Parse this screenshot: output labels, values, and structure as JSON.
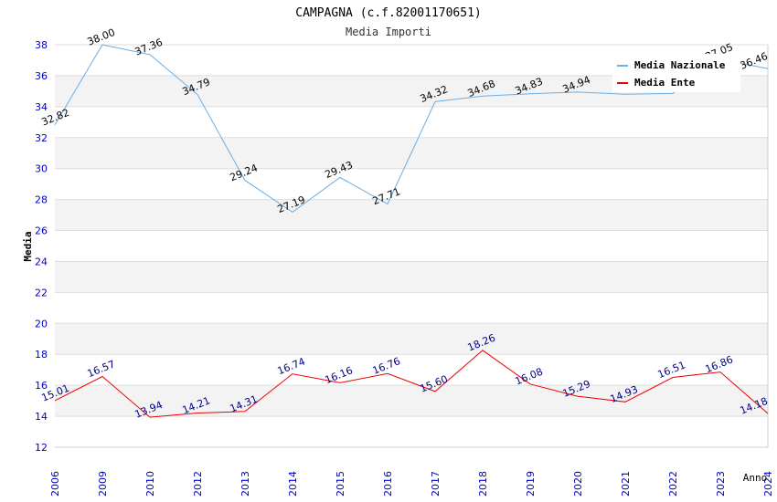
{
  "chart_data": {
    "type": "line",
    "title": "CAMPAGNA (c.f.82001170651)",
    "subtitle": "Media Importi",
    "xlabel": "Anno",
    "ylabel": "Media",
    "ylim": [
      12,
      38
    ],
    "yticks": [
      "12",
      "14",
      "16",
      "18",
      "20",
      "22",
      "24",
      "26",
      "28",
      "30",
      "32",
      "34",
      "36",
      "38"
    ],
    "categories": [
      "2006",
      "2009",
      "2010",
      "2012",
      "2013",
      "2014",
      "2015",
      "2016",
      "2017",
      "2018",
      "2019",
      "2020",
      "2021",
      "2022",
      "2023",
      "2024"
    ],
    "grid": true,
    "legend_position": "top-right",
    "series": [
      {
        "name": "Media Nazionale",
        "color": "#6aaee6",
        "label_color": "#000000",
        "values": [
          32.82,
          38.0,
          37.36,
          34.79,
          29.24,
          27.19,
          29.43,
          27.71,
          34.32,
          34.68,
          34.83,
          34.94,
          null,
          null,
          37.05,
          36.46
        ],
        "line_values": [
          32.82,
          38.0,
          37.36,
          34.79,
          29.24,
          27.19,
          29.43,
          27.71,
          34.32,
          34.68,
          34.83,
          34.94,
          34.8,
          34.85,
          37.05,
          36.46
        ],
        "labels": [
          "32.82",
          "38.00",
          "37.36",
          "34.79",
          "29.24",
          "27.19",
          "29.43",
          "27.71",
          "34.32",
          "34.68",
          "34.83",
          "34.94",
          "",
          "",
          "37.05",
          "36.46"
        ]
      },
      {
        "name": "Media Ente",
        "color": "#ee0000",
        "label_color": "#000080",
        "values": [
          15.01,
          16.57,
          13.94,
          14.21,
          14.31,
          16.74,
          16.16,
          16.76,
          15.6,
          18.26,
          16.08,
          15.29,
          14.93,
          16.51,
          16.86,
          14.18
        ],
        "line_values": [
          15.01,
          16.57,
          13.94,
          14.21,
          14.31,
          16.74,
          16.16,
          16.76,
          15.6,
          18.26,
          16.08,
          15.29,
          14.93,
          16.51,
          16.86,
          14.18
        ],
        "labels": [
          "15.01",
          "16.57",
          "13.94",
          "14.21",
          "14.31",
          "16.74",
          "16.16",
          "16.76",
          "15.60",
          "18.26",
          "16.08",
          "15.29",
          "14.93",
          "16.51",
          "16.86",
          "14.18"
        ]
      }
    ]
  }
}
